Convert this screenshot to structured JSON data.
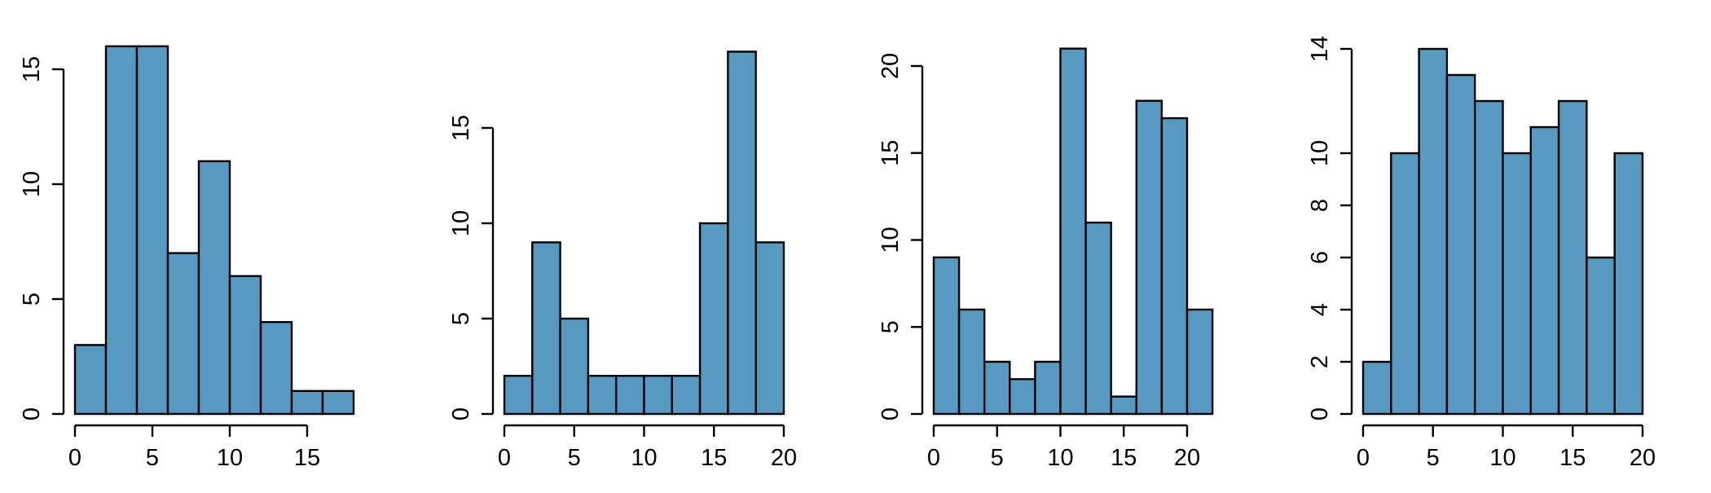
{
  "bar_fill": "#5799c0",
  "bar_stroke": "#000000",
  "chart_data": [
    {
      "type": "bar",
      "title": "",
      "xlabel": "",
      "ylabel": "",
      "bin_edges": [
        0,
        2,
        4,
        6,
        8,
        10,
        12,
        14,
        16,
        18
      ],
      "values": [
        3,
        16,
        16,
        7,
        11,
        6,
        4,
        1,
        1
      ],
      "xlim": [
        0,
        18
      ],
      "ylim": [
        0,
        16
      ],
      "x_ticks": [
        0,
        5,
        10,
        15
      ],
      "y_ticks": [
        0,
        5,
        10,
        15
      ]
    },
    {
      "type": "bar",
      "title": "",
      "xlabel": "",
      "ylabel": "",
      "bin_edges": [
        0,
        2,
        4,
        6,
        8,
        10,
        12,
        14,
        16,
        18,
        20
      ],
      "values": [
        2,
        9,
        5,
        2,
        2,
        2,
        2,
        10,
        19,
        9
      ],
      "xlim": [
        0,
        20
      ],
      "ylim": [
        0,
        19
      ],
      "x_ticks": [
        0,
        5,
        10,
        15,
        20
      ],
      "y_ticks": [
        0,
        5,
        10,
        15
      ]
    },
    {
      "type": "bar",
      "title": "",
      "xlabel": "",
      "ylabel": "",
      "bin_edges": [
        0,
        2,
        4,
        6,
        8,
        10,
        12,
        14,
        16,
        18,
        20,
        22
      ],
      "values": [
        9,
        6,
        3,
        2,
        3,
        21,
        11,
        1,
        18,
        17,
        6
      ],
      "xlim": [
        0,
        22
      ],
      "ylim": [
        0,
        21
      ],
      "x_ticks": [
        0,
        5,
        10,
        15,
        20
      ],
      "y_ticks": [
        0,
        5,
        10,
        15,
        20
      ]
    },
    {
      "type": "bar",
      "title": "",
      "xlabel": "",
      "ylabel": "",
      "bin_edges": [
        0,
        2,
        4,
        6,
        8,
        10,
        12,
        14,
        16,
        18,
        20
      ],
      "values": [
        2,
        10,
        14,
        13,
        12,
        10,
        11,
        12,
        6,
        10
      ],
      "xlim": [
        0,
        20
      ],
      "ylim": [
        0,
        14
      ],
      "x_ticks": [
        0,
        5,
        10,
        15,
        20
      ],
      "y_ticks": [
        0,
        2,
        4,
        6,
        8,
        10,
        14
      ]
    }
  ]
}
